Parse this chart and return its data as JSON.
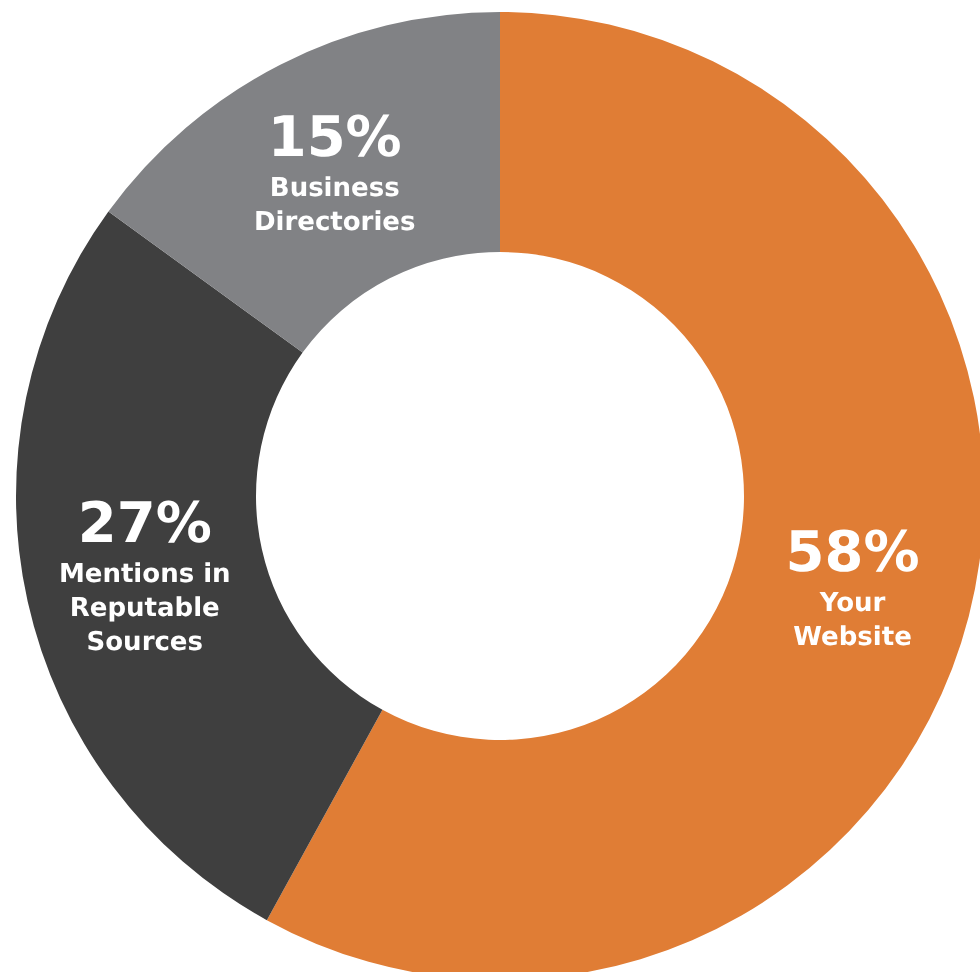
{
  "chart_data": {
    "type": "donut",
    "categories": [
      "Your Website",
      "Mentions in Reputable Sources",
      "Business Directories"
    ],
    "values": [
      58,
      27,
      15
    ],
    "value_labels": [
      "58%",
      "27%",
      "15%"
    ],
    "colors": [
      "#e07d35",
      "#3f3f3f",
      "#818285"
    ]
  }
}
